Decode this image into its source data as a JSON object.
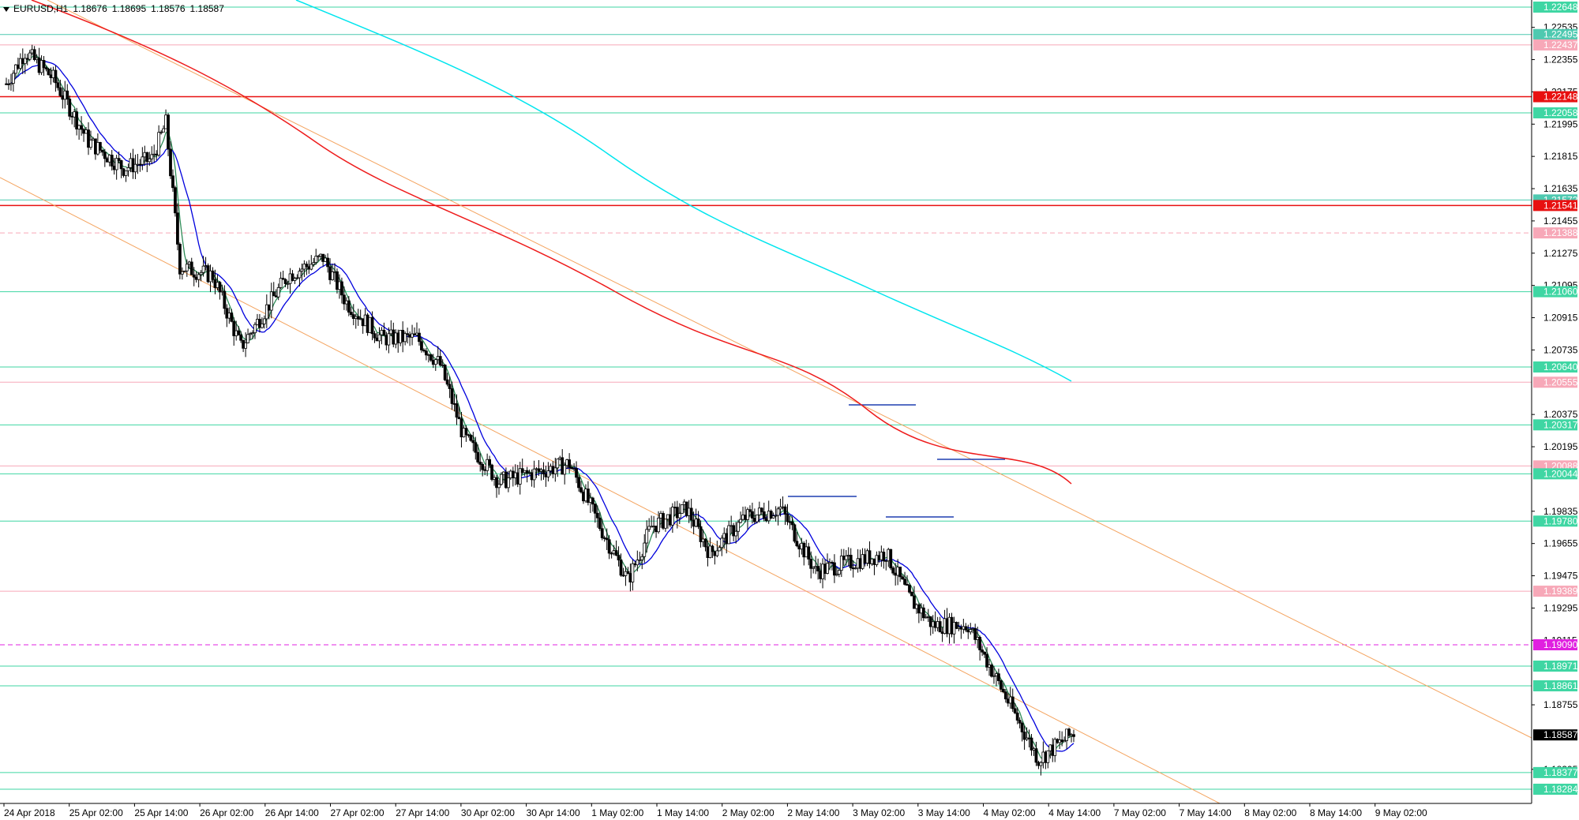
{
  "header": {
    "symbol": "EURUSD,H1",
    "open": "1.18676",
    "high": "1.18695",
    "low": "1.18576",
    "close": "1.18587"
  },
  "price_axis": {
    "ticks": [
      "1.22535",
      "1.22355",
      "1.22175",
      "1.21995",
      "1.21815",
      "1.21635",
      "1.21455",
      "1.21275",
      "1.21095",
      "1.20915",
      "1.20735",
      "1.20375",
      "1.20195",
      "1.19835",
      "1.19655",
      "1.19475",
      "1.19295",
      "1.19115",
      "1.18755",
      "1.18395"
    ],
    "level_labels": [
      {
        "price": 1.22648,
        "text": "1.22648",
        "color": "#3fd6a3"
      },
      {
        "price": 1.22495,
        "text": "1.22495",
        "color": "#4ec9b0"
      },
      {
        "price": 1.22437,
        "text": "1.22437",
        "color": "#f7a8b8"
      },
      {
        "price": 1.22148,
        "text": "1.22148",
        "color": "#e81010"
      },
      {
        "price": 1.22058,
        "text": "1.22058",
        "color": "#3fd6a3"
      },
      {
        "price": 1.21572,
        "text": "1.21572",
        "color": "#4ec9b0"
      },
      {
        "price": 1.21541,
        "text": "1.21541",
        "color": "#e81010"
      },
      {
        "price": 1.21388,
        "text": "1.21388",
        "color": "#f7a8b8"
      },
      {
        "price": 1.2106,
        "text": "1.21060",
        "color": "#3fd6a3"
      },
      {
        "price": 1.2064,
        "text": "1.20640",
        "color": "#3fd6a3"
      },
      {
        "price": 1.20555,
        "text": "1.20555",
        "color": "#f7a8b8"
      },
      {
        "price": 1.20317,
        "text": "1.20317",
        "color": "#3fd6a3"
      },
      {
        "price": 1.20088,
        "text": "1.20088",
        "color": "#f7a8b8"
      },
      {
        "price": 1.20044,
        "text": "1.20044",
        "color": "#3fd6a3"
      },
      {
        "price": 1.1978,
        "text": "1.19780",
        "color": "#3fd6a3"
      },
      {
        "price": 1.19389,
        "text": "1.19389",
        "color": "#f7a8b8"
      },
      {
        "price": 1.1909,
        "text": "1.19090",
        "color": "#e020e0"
      },
      {
        "price": 1.18971,
        "text": "1.18971",
        "color": "#3fd6a3"
      },
      {
        "price": 1.18861,
        "text": "1.18861",
        "color": "#3fd6a3"
      },
      {
        "price": 1.18587,
        "text": "1.18587",
        "color": "#000000"
      },
      {
        "price": 1.18377,
        "text": "1.18377",
        "color": "#3fd6a3"
      },
      {
        "price": 1.18284,
        "text": "1.18284",
        "color": "#3fd6a3"
      }
    ]
  },
  "time_axis": {
    "labels": [
      "24 Apr 2018",
      "25 Apr 02:00",
      "25 Apr 14:00",
      "26 Apr 02:00",
      "26 Apr 14:00",
      "27 Apr 02:00",
      "27 Apr 14:00",
      "30 Apr 02:00",
      "30 Apr 14:00",
      "1 May 02:00",
      "1 May 14:00",
      "2 May 02:00",
      "2 May 14:00",
      "3 May 02:00",
      "3 May 14:00",
      "4 May 02:00",
      "4 May 14:00",
      "7 May 02:00",
      "7 May 14:00",
      "8 May 02:00",
      "8 May 14:00",
      "9 May 02:00"
    ]
  },
  "colors": {
    "bull": "#ffffff",
    "bear": "#000000",
    "ma_fast": "#2e8b57",
    "ma_mid": "#0000dd",
    "ma_slow": "#ee1c1c",
    "ma_long": "#00e5ee",
    "channel": "#f4a460",
    "support": "#3fd6a3",
    "resistance": "#f7a8b8",
    "pivot": "#e020e0",
    "structure": "#1f3fb0"
  }
}
